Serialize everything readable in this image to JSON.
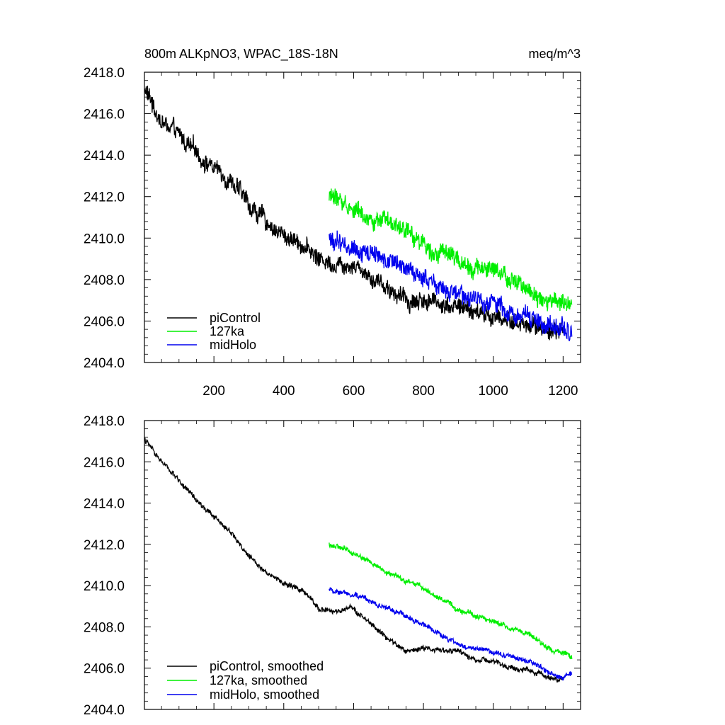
{
  "figure": {
    "title_left": "800m ALKpNO3, WPAC_18S-18N",
    "title_right": "meq/m^3"
  },
  "chart_data": [
    {
      "type": "line",
      "panel": "top",
      "title": "800m ALKpNO3, WPAC_18S-18N",
      "units": "meq/m^3",
      "xlim": [
        1,
        1250
      ],
      "ylim": [
        2404.0,
        2418.0
      ],
      "xticks": [
        200,
        400,
        600,
        800,
        1000,
        1200
      ],
      "xtick_labels": [
        "200",
        "400",
        "600",
        "800",
        "1000",
        "1200"
      ],
      "show_xtick_labels": true,
      "yticks": [
        2404.0,
        2406.0,
        2408.0,
        2410.0,
        2412.0,
        2414.0,
        2416.0,
        2418.0
      ],
      "ytick_labels": [
        "2404.0",
        "2406.0",
        "2408.0",
        "2410.0",
        "2412.0",
        "2414.0",
        "2416.0",
        "2418.0"
      ],
      "noise": 0.45,
      "legend_position": "bottom-left",
      "series": [
        {
          "name": "piControl",
          "color": "#000000",
          "x": [
            1,
            50,
            100,
            150,
            200,
            250,
            300,
            350,
            400,
            450,
            500,
            550,
            600,
            650,
            700,
            750,
            800,
            850,
            900,
            950,
            1000,
            1050,
            1100,
            1150,
            1200
          ],
          "values": [
            2417.2,
            2415.6,
            2414.9,
            2414.1,
            2413.4,
            2412.8,
            2411.6,
            2410.8,
            2410.1,
            2409.8,
            2409.0,
            2408.8,
            2408.8,
            2408.2,
            2407.6,
            2407.0,
            2407.0,
            2406.9,
            2406.7,
            2406.4,
            2406.2,
            2406.0,
            2405.8,
            2405.6,
            2405.6
          ]
        },
        {
          "name": "127ka",
          "color": "#00ee00",
          "x": [
            530,
            600,
            700,
            800,
            900,
            1000,
            1050,
            1100,
            1150,
            1200,
            1225
          ],
          "values": [
            2412.1,
            2411.4,
            2410.6,
            2409.8,
            2408.9,
            2408.4,
            2407.9,
            2407.6,
            2407.1,
            2406.8,
            2406.6
          ]
        },
        {
          "name": "midHolo",
          "color": "#0000ee",
          "x": [
            530,
            600,
            700,
            800,
            900,
            1000,
            1050,
            1100,
            1150,
            1200,
            1225
          ],
          "values": [
            2409.9,
            2409.6,
            2408.9,
            2408.1,
            2407.1,
            2406.9,
            2406.5,
            2406.2,
            2405.8,
            2405.6,
            2405.6
          ]
        }
      ]
    },
    {
      "type": "line",
      "panel": "bottom",
      "xlim": [
        1,
        1250
      ],
      "ylim": [
        2404.0,
        2418.0
      ],
      "xticks": [
        200,
        400,
        600,
        800,
        1000,
        1200
      ],
      "xtick_labels": [],
      "show_xtick_labels": false,
      "yticks": [
        2404.0,
        2406.0,
        2408.0,
        2410.0,
        2412.0,
        2414.0,
        2416.0,
        2418.0
      ],
      "ytick_labels": [
        "2404.0",
        "2406.0",
        "2408.0",
        "2410.0",
        "2412.0",
        "2414.0",
        "2416.0",
        "2418.0"
      ],
      "noise": 0.13,
      "legend_position": "bottom-left",
      "series": [
        {
          "name": "piControl, smoothed",
          "color": "#000000",
          "x": [
            1,
            50,
            100,
            150,
            200,
            250,
            300,
            350,
            400,
            450,
            500,
            550,
            600,
            650,
            700,
            750,
            800,
            850,
            900,
            950,
            1000,
            1050,
            1100,
            1150,
            1200
          ],
          "values": [
            2417.1,
            2416.0,
            2415.1,
            2414.1,
            2413.3,
            2412.6,
            2411.4,
            2410.7,
            2410.1,
            2409.8,
            2408.9,
            2408.7,
            2408.9,
            2408.1,
            2407.4,
            2406.8,
            2407.0,
            2406.9,
            2406.8,
            2406.4,
            2406.3,
            2406.0,
            2405.9,
            2405.6,
            2405.5
          ]
        },
        {
          "name": "127ka, smoothed",
          "color": "#00ee00",
          "x": [
            530,
            600,
            700,
            800,
            900,
            1000,
            1050,
            1100,
            1150,
            1200,
            1225
          ],
          "values": [
            2412.0,
            2411.6,
            2410.6,
            2409.9,
            2408.8,
            2408.3,
            2407.9,
            2407.7,
            2407.0,
            2406.8,
            2406.5
          ]
        },
        {
          "name": "midHolo, smoothed",
          "color": "#0000ee",
          "x": [
            530,
            600,
            700,
            800,
            900,
            1000,
            1050,
            1100,
            1150,
            1200,
            1225
          ],
          "values": [
            2409.8,
            2409.6,
            2408.9,
            2408.1,
            2407.1,
            2406.8,
            2406.6,
            2406.3,
            2405.9,
            2405.6,
            2405.8
          ]
        }
      ]
    }
  ]
}
